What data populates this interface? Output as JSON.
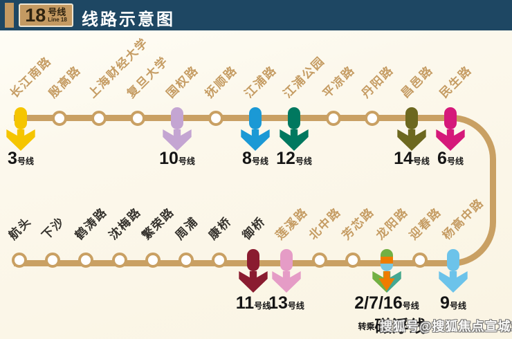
{
  "header": {
    "badge_number": "18",
    "badge_suffix": "号线",
    "badge_sub": "Line 18",
    "title": "线路示意图"
  },
  "watermark": "搜狐号@搜狐焦点宣城站",
  "maglev": {
    "prefix": "转乘",
    "label": "磁浮线"
  },
  "colors": {
    "header_bg": "#1e4763",
    "accent_gold": "#c49a62",
    "line_gold": "#c9a063",
    "canvas_bg": "#fbf6e7",
    "station_label_gold": "#c59c63",
    "station_label_dark": "#35322d",
    "transfer_text": "#151515",
    "line3_yellow": "#f5c500",
    "line10_purple": "#c4a5d2",
    "line8_blue": "#1b99d5",
    "line12_green": "#00785f",
    "line14_olive": "#6d681f",
    "line6_magenta": "#d5197a",
    "line11_maroon": "#8a1c30",
    "line13_pink": "#e59cc6",
    "line9_lightblue": "#6cc3ea",
    "line2_green": "#72b043",
    "line7_orange": "#ef7c00",
    "line16_teal": "#44a893",
    "maglev_capsule_blue": "#79c6e0"
  },
  "top_row": {
    "stations": [
      {
        "name": "长江南路",
        "status": "future",
        "transfer": {
          "num": "3",
          "suffix": "号线",
          "colors": [
            "#f5c500"
          ]
        }
      },
      {
        "name": "殷高路",
        "status": "future"
      },
      {
        "name": "上海财经大学",
        "status": "future"
      },
      {
        "name": "复旦大学",
        "status": "future"
      },
      {
        "name": "国权路",
        "status": "future",
        "transfer": {
          "num": "10",
          "suffix": "号线",
          "colors": [
            "#c4a5d2"
          ]
        }
      },
      {
        "name": "抚顺路",
        "status": "future"
      },
      {
        "name": "江浦路",
        "status": "future",
        "transfer": {
          "num": "8",
          "suffix": "号线",
          "colors": [
            "#1b99d5"
          ]
        }
      },
      {
        "name": "江浦公园",
        "status": "future",
        "transfer": {
          "num": "12",
          "suffix": "号线",
          "colors": [
            "#00785f"
          ]
        }
      },
      {
        "name": "平凉路",
        "status": "future"
      },
      {
        "name": "丹阳路",
        "status": "future"
      },
      {
        "name": "昌邑路",
        "status": "future",
        "transfer": {
          "num": "14",
          "suffix": "号线",
          "colors": [
            "#6d681f"
          ]
        }
      },
      {
        "name": "民生路",
        "status": "future",
        "transfer": {
          "num": "6",
          "suffix": "号线",
          "colors": [
            "#d5197a"
          ]
        }
      }
    ]
  },
  "bottom_row": {
    "stations": [
      {
        "name": "航头",
        "status": "open"
      },
      {
        "name": "下沙",
        "status": "open"
      },
      {
        "name": "鹤涛路",
        "status": "open"
      },
      {
        "name": "沈梅路",
        "status": "open"
      },
      {
        "name": "繁荣路",
        "status": "open"
      },
      {
        "name": "周浦",
        "status": "open"
      },
      {
        "name": "康桥",
        "status": "open"
      },
      {
        "name": "御桥",
        "status": "open",
        "transfer": {
          "num": "11",
          "suffix": "号线",
          "colors": [
            "#8a1c30"
          ]
        }
      },
      {
        "name": "莲溪路",
        "status": "future",
        "transfer": {
          "num": "13",
          "suffix": "号线",
          "colors": [
            "#e59cc6"
          ]
        }
      },
      {
        "name": "北中路",
        "status": "future"
      },
      {
        "name": "芳芯路",
        "status": "future"
      },
      {
        "name": "龙阳路",
        "status": "future",
        "transfer": {
          "num": "2/7/16",
          "suffix": "号线",
          "colors": [
            "#72b043",
            "#ef7c00",
            "#44a893"
          ],
          "capsule": [
            "#72b043",
            "#ef7c00",
            "#79c6e0"
          ],
          "maglev": true
        }
      },
      {
        "name": "迎春路",
        "status": "future"
      },
      {
        "name": "杨高中路",
        "status": "future",
        "transfer": {
          "num": "9",
          "suffix": "号线",
          "colors": [
            "#6cc3ea"
          ]
        }
      }
    ]
  }
}
